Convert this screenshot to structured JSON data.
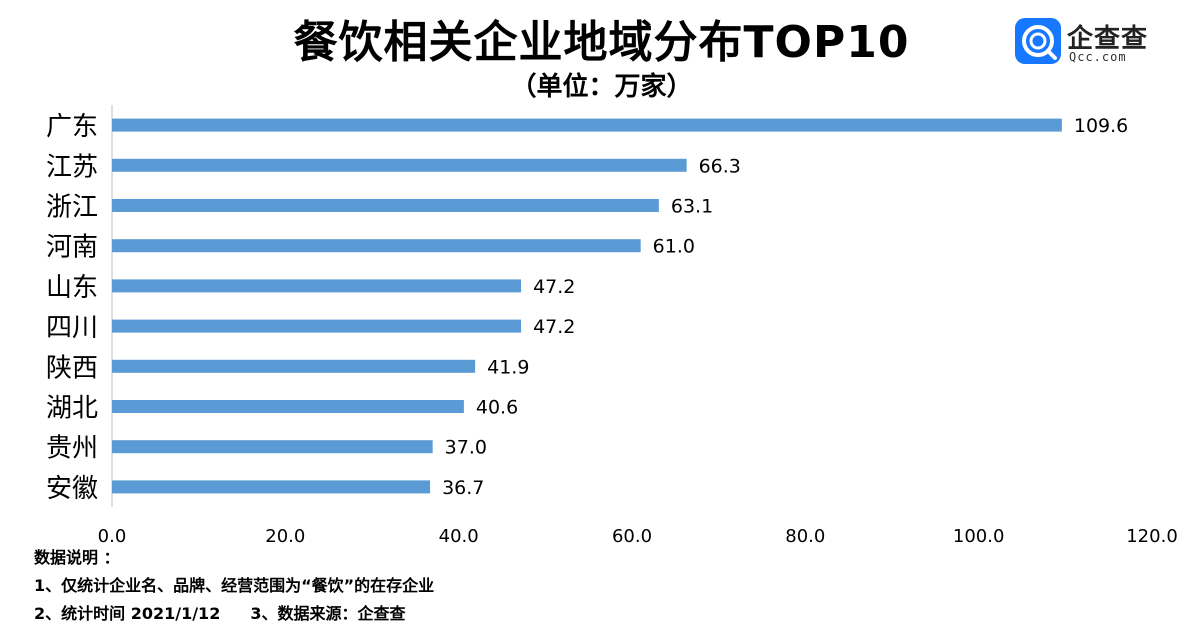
{
  "header": {
    "title": "餐饮相关企业地域分布TOP10",
    "subtitle": "（单位：万家）"
  },
  "logo": {
    "name": "企查查",
    "domain": "Qcc.com"
  },
  "notes": {
    "heading": "数据说明 ：",
    "line1": "1、仅统计企业名、品牌、经营范围为“餐饮”的在存企业",
    "line2a": "2、统计时间  2021/1/12",
    "line2b": "3、数据来源：企查查"
  },
  "colors": {
    "bar": "#5b9bd5",
    "axis": "#bfbfbf"
  },
  "chart_data": {
    "type": "bar",
    "orientation": "horizontal",
    "title": "餐饮相关企业地域分布TOP10",
    "subtitle": "（单位：万家）",
    "categories": [
      "广东",
      "江苏",
      "浙江",
      "河南",
      "山东",
      "四川",
      "陕西",
      "湖北",
      "贵州",
      "安徽"
    ],
    "values": [
      109.6,
      66.3,
      63.1,
      61.0,
      47.2,
      47.2,
      41.9,
      40.6,
      37.0,
      36.7
    ],
    "value_labels": [
      "109.6",
      "66.3",
      "63.1",
      "61.0",
      "47.2",
      "47.2",
      "41.9",
      "40.6",
      "37.0",
      "36.7"
    ],
    "xlim": [
      0,
      120
    ],
    "xticks": [
      0,
      20,
      40,
      60,
      80,
      100,
      120
    ],
    "xtick_labels": [
      "0.0",
      "20.0",
      "40.0",
      "60.0",
      "80.0",
      "100.0",
      "120.0"
    ],
    "grid": false,
    "legend": "none"
  }
}
